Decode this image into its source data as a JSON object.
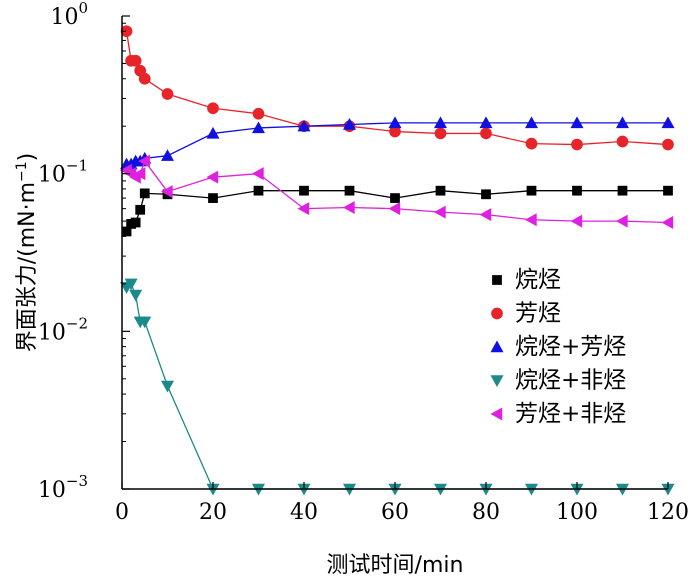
{
  "chart_data": {
    "type": "scatter",
    "xlabel": "测试时间/min",
    "ylabel": "界面张力/(mN·m",
    "ylabel_sup": "−1",
    "ylabel_close": ")",
    "xlim": [
      0,
      120
    ],
    "ylim": [
      0.001,
      1
    ],
    "yscale": "log",
    "x_ticks": [
      0,
      20,
      40,
      60,
      80,
      100,
      120
    ],
    "y_ticks": [
      {
        "value": 1,
        "base": "10",
        "exp": "0"
      },
      {
        "value": 0.1,
        "base": "10",
        "exp": "−1"
      },
      {
        "value": 0.01,
        "base": "10",
        "exp": "−2"
      },
      {
        "value": 0.001,
        "base": "10",
        "exp": "−3"
      }
    ],
    "grid": false,
    "legend_position": "right",
    "series": [
      {
        "name": "烷烃",
        "marker": "square",
        "color": "#000000",
        "x": [
          1,
          2,
          3,
          4,
          5,
          10,
          20,
          30,
          40,
          50,
          60,
          70,
          80,
          90,
          100,
          110,
          120
        ],
        "y": [
          0.043,
          0.048,
          0.049,
          0.059,
          0.075,
          0.074,
          0.07,
          0.078,
          0.078,
          0.078,
          0.07,
          0.078,
          0.074,
          0.078,
          0.078,
          0.078,
          0.078
        ]
      },
      {
        "name": "芳烃",
        "marker": "circle",
        "color": "#e8242b",
        "x": [
          1,
          2,
          3,
          4,
          5,
          10,
          20,
          30,
          40,
          50,
          60,
          70,
          80,
          90,
          100,
          110,
          120
        ],
        "y": [
          0.8,
          0.52,
          0.52,
          0.45,
          0.4,
          0.32,
          0.26,
          0.24,
          0.2,
          0.2,
          0.185,
          0.18,
          0.18,
          0.155,
          0.153,
          0.16,
          0.153
        ]
      },
      {
        "name": "烷烃+芳烃",
        "marker": "triangle-up",
        "color": "#1010e0",
        "x": [
          1,
          2,
          3,
          4,
          5,
          10,
          20,
          30,
          40,
          50,
          60,
          70,
          80,
          90,
          100,
          110,
          120
        ],
        "y": [
          0.115,
          0.115,
          0.12,
          0.12,
          0.125,
          0.13,
          0.18,
          0.195,
          0.2,
          0.205,
          0.21,
          0.21,
          0.21,
          0.21,
          0.21,
          0.21,
          0.21
        ]
      },
      {
        "name": "烷烃+非烃",
        "marker": "triangle-down",
        "color": "#1a8a8a",
        "x": [
          1,
          2,
          3,
          4,
          5,
          10,
          20,
          30,
          40,
          50,
          60,
          70,
          80,
          90,
          100,
          110,
          120
        ],
        "y": [
          0.019,
          0.02,
          0.017,
          0.0115,
          0.0115,
          0.0045,
          0.001,
          0.001,
          0.001,
          0.001,
          0.001,
          0.001,
          0.001,
          0.001,
          0.001,
          0.001,
          0.001
        ]
      },
      {
        "name": "芳烃+非烃",
        "marker": "triangle-left",
        "color": "#e020e0",
        "x": [
          1,
          2,
          3,
          4,
          5,
          10,
          20,
          30,
          40,
          50,
          60,
          70,
          80,
          90,
          100,
          110,
          120
        ],
        "y": [
          0.105,
          0.1,
          0.095,
          0.1,
          0.12,
          0.077,
          0.095,
          0.1,
          0.06,
          0.061,
          0.06,
          0.057,
          0.055,
          0.051,
          0.05,
          0.05,
          0.049
        ]
      }
    ]
  }
}
